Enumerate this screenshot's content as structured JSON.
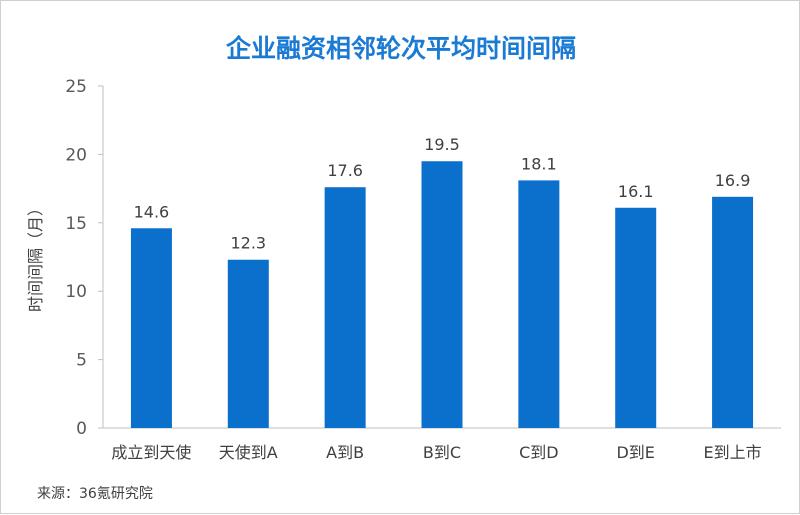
{
  "chart_data": {
    "type": "bar",
    "title": "企业融资相邻轮次平均时间间隔",
    "ylabel": "时间间隔（月）",
    "xlabel": "",
    "categories": [
      "成立到天使",
      "天使到A",
      "A到B",
      "B到C",
      "C到D",
      "D到E",
      "E到上市"
    ],
    "values": [
      14.6,
      12.3,
      17.6,
      19.5,
      18.1,
      16.1,
      16.9
    ],
    "value_labels": [
      "14.6",
      "12.3",
      "17.6",
      "19.5",
      "18.1",
      "16.1",
      "16.9"
    ],
    "ylim": [
      0,
      25
    ],
    "yticks": [
      0,
      5,
      10,
      15,
      20,
      25
    ],
    "grid": false,
    "color": "#0a70cc"
  },
  "source": "来源：36氪研究院"
}
